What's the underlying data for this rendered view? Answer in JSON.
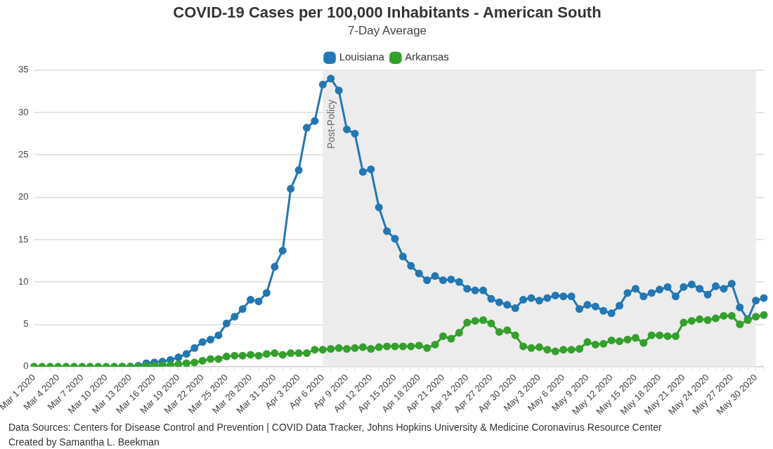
{
  "chart_data": {
    "type": "line",
    "title": "COVID-19 Cases per 100,000 Inhabitants - American South",
    "subtitle": "7-Day Average",
    "categories": [
      "Mar 1 2020",
      null,
      null,
      "Mar 4 2020",
      null,
      null,
      "Mar 7 2020",
      null,
      null,
      "Mar 10 2020",
      null,
      null,
      "Mar 13 2020",
      null,
      null,
      "Mar 16 2020",
      null,
      null,
      "Mar 19 2020",
      null,
      null,
      "Mar 22 2020",
      null,
      null,
      "Mar 25 2020",
      null,
      null,
      "Mar 28 2020",
      null,
      null,
      "Mar 31 2020",
      null,
      null,
      "Apr 3 2020",
      null,
      null,
      "Apr 6 2020",
      null,
      null,
      "Apr 9 2020",
      null,
      null,
      "Apr 12 2020",
      null,
      null,
      "Apr 15 2020",
      null,
      null,
      "Apr 18 2020",
      null,
      null,
      "Apr 21 2020",
      null,
      null,
      "Apr 24 2020",
      null,
      null,
      "Apr 27 2020",
      null,
      null,
      "Apr 30 2020",
      null,
      null,
      "May 3 2020",
      null,
      null,
      "May 6 2020",
      null,
      null,
      "May 9 2020",
      null,
      null,
      "May 12 2020",
      null,
      null,
      "May 15 2020",
      null,
      null,
      "May 18 2020",
      null,
      null,
      "May 21 2020",
      null,
      null,
      "May 24 2020",
      null,
      null,
      "May 27 2020",
      null,
      null,
      "May 30 2020",
      null
    ],
    "series": [
      {
        "name": "Louisiana",
        "color": "#2277b4",
        "values": [
          null,
          null,
          null,
          null,
          null,
          null,
          null,
          null,
          null,
          null,
          null,
          0,
          0,
          0.1,
          0.4,
          0.5,
          0.6,
          0.8,
          1.1,
          1.5,
          2.2,
          2.9,
          3.2,
          3.7,
          5.1,
          5.9,
          6.8,
          7.9,
          7.7,
          8.7,
          11.8,
          13.7,
          21.0,
          23.2,
          28.2,
          29.0,
          33.3,
          34.0,
          32.6,
          28.0,
          27.5,
          23.0,
          23.3,
          18.8,
          16.0,
          15.1,
          13.0,
          11.9,
          11.0,
          10.2,
          10.7,
          10.2,
          10.3,
          10.0,
          9.2,
          9.0,
          9.0,
          8.0,
          7.6,
          7.3,
          6.9,
          7.9,
          8.1,
          7.8,
          8.1,
          8.4,
          8.3,
          8.3,
          6.8,
          7.3,
          7.1,
          6.6,
          6.3,
          7.2,
          8.7,
          9.2,
          8.3,
          8.7,
          9.1,
          9.4,
          8.3,
          9.4,
          9.7,
          9.2,
          8.5,
          9.5,
          9.2,
          9.8,
          7.0,
          5.6,
          7.8,
          8.1
        ]
      },
      {
        "name": "Arkansas",
        "color": "#33a02c",
        "values": [
          0,
          0,
          0,
          0,
          0,
          0,
          0,
          0,
          0,
          0,
          0,
          0,
          0,
          0,
          0.1,
          0.1,
          0.2,
          0.2,
          0.3,
          0.4,
          0.5,
          0.7,
          0.9,
          0.9,
          1.2,
          1.3,
          1.3,
          1.4,
          1.3,
          1.5,
          1.6,
          1.4,
          1.6,
          1.6,
          1.6,
          2.0,
          2.0,
          2.1,
          2.2,
          2.1,
          2.2,
          2.3,
          2.1,
          2.3,
          2.4,
          2.4,
          2.4,
          2.4,
          2.5,
          2.2,
          2.6,
          3.6,
          3.3,
          4.0,
          5.2,
          5.4,
          5.5,
          5.1,
          4.1,
          4.3,
          3.7,
          2.4,
          2.2,
          2.3,
          2.0,
          1.8,
          2.0,
          2.0,
          2.1,
          2.9,
          2.6,
          2.7,
          3.1,
          3.0,
          3.2,
          3.4,
          2.8,
          3.7,
          3.7,
          3.6,
          3.6,
          5.2,
          5.4,
          5.6,
          5.5,
          5.7,
          6.0,
          6.0,
          5.0,
          5.5,
          5.9,
          6.1
        ]
      }
    ],
    "ylim": [
      0,
      35
    ],
    "yticks": [
      0,
      5,
      10,
      15,
      20,
      25,
      30,
      35
    ],
    "grid": "y",
    "legend": "top",
    "marker": "circle",
    "line_style": "solid",
    "bands": [
      {
        "axis": "x",
        "from": "Apr 6 2020",
        "to": "May 30 2020",
        "label": "Post-Policy",
        "color": "#ececec"
      }
    ],
    "annotations": [
      "Data Sources: Centers for Disease Control and Prevention | COVID Data Tracker, Johns Hopkins University & Medicine Coronavirus Resource Center",
      "Created by Samantha L. Beekman"
    ]
  }
}
